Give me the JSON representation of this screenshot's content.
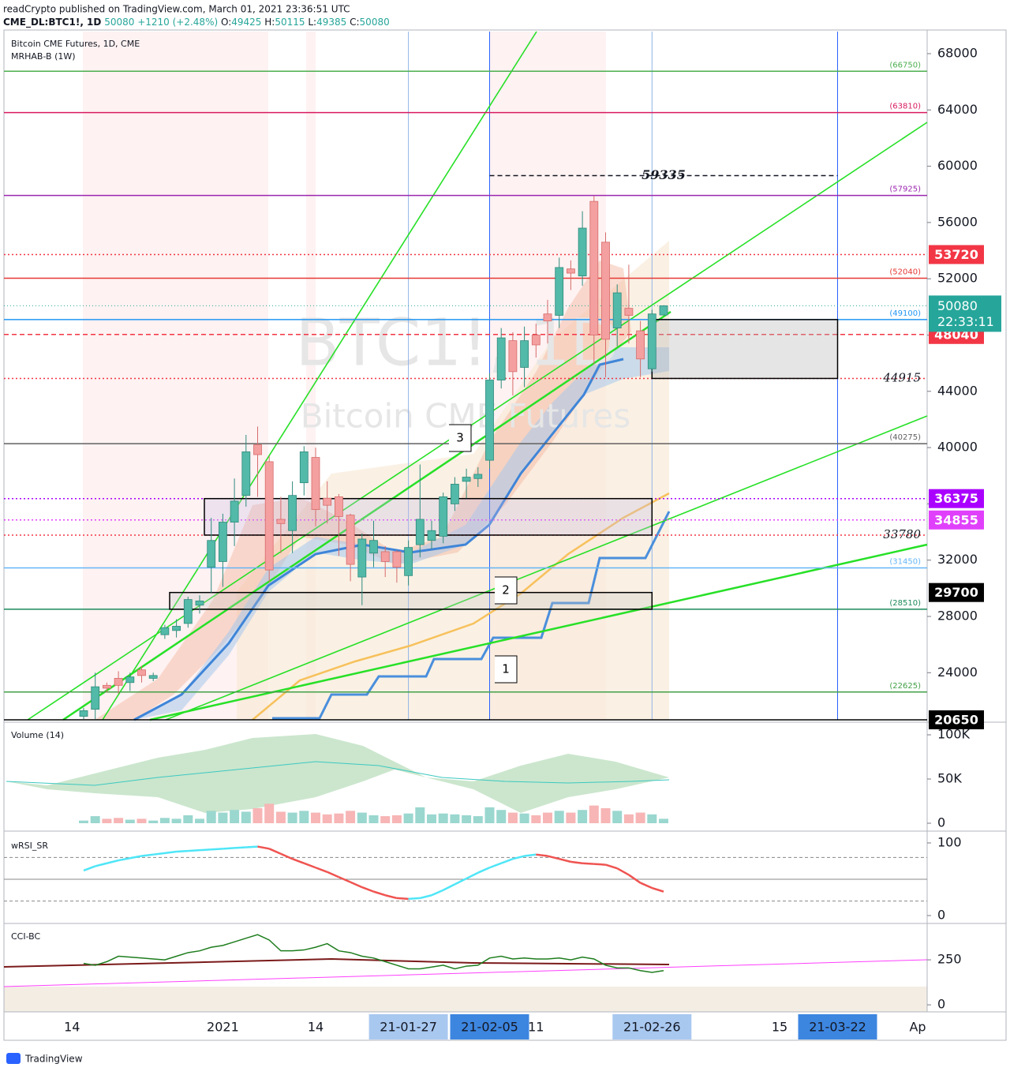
{
  "header": {
    "published": "readCrypto published on TradingView.com, March 01, 2021 23:36:51 UTC",
    "symbol": "CME_DL:BTC1!, 1D",
    "change": "+1210 (+2.48%)",
    "o_label": "O:",
    "h_label": "H:",
    "l_label": "L:",
    "c_label": "C:"
  },
  "footer": {
    "brand": "TradingView"
  },
  "chart_data": [
    {
      "type": "candlestick",
      "title": "Bitcoin CME Futures, 1D, CME",
      "subtitle": "MRHAB-B (1W)",
      "watermark": [
        "BTC1!, 1D",
        "Bitcoin CME Futures"
      ],
      "countdown": "22:33:11",
      "annotations": [
        "3",
        "2",
        "1"
      ],
      "up_color": "#53b9a8",
      "down_color": "#f4a0a0",
      "x": [
        "2020-12-15",
        "2020-12-16",
        "2020-12-17",
        "2020-12-18",
        "2020-12-21",
        "2020-12-22",
        "2020-12-23",
        "2020-12-24",
        "2020-12-28",
        "2020-12-29",
        "2020-12-30",
        "2020-12-31",
        "2021-01-04",
        "2021-01-05",
        "2021-01-06",
        "2021-01-07",
        "2021-01-08",
        "2021-01-11",
        "2021-01-12",
        "2021-01-13",
        "2021-01-14",
        "2021-01-15",
        "2021-01-19",
        "2021-01-20",
        "2021-01-21",
        "2021-01-22",
        "2021-01-25",
        "2021-01-26",
        "2021-01-27",
        "2021-01-28",
        "2021-01-29",
        "2021-02-01",
        "2021-02-02",
        "2021-02-03",
        "2021-02-04",
        "2021-02-05",
        "2021-02-08",
        "2021-02-09",
        "2021-02-10",
        "2021-02-11",
        "2021-02-12",
        "2021-02-16",
        "2021-02-17",
        "2021-02-18",
        "2021-02-19",
        "2021-02-22",
        "2021-02-23",
        "2021-02-24",
        "2021-02-25",
        "2021-02-26",
        "2021-03-01"
      ],
      "open": [
        20900,
        21400,
        23100,
        23600,
        23300,
        24200,
        23600,
        26700,
        27000,
        27500,
        28800,
        31500,
        31900,
        34700,
        36600,
        40200,
        39000,
        34900,
        34100,
        37500,
        39300,
        36400,
        36500,
        35200,
        30800,
        32500,
        32600,
        32600,
        30900,
        33100,
        33400,
        33700,
        36000,
        37600,
        37800,
        39100,
        44800,
        47600,
        45700,
        48000,
        49500,
        49400,
        52700,
        52200,
        57500,
        54600,
        48500,
        49900,
        48300,
        45600,
        49425
      ],
      "high": [
        21500,
        24000,
        23300,
        24100,
        24000,
        24500,
        24000,
        27400,
        27800,
        29400,
        29500,
        35000,
        35300,
        37800,
        40900,
        41500,
        39400,
        36500,
        37600,
        40100,
        40000,
        37600,
        36700,
        35300,
        33900,
        34800,
        33000,
        32700,
        33400,
        38800,
        34800,
        36800,
        37900,
        38500,
        38600,
        45300,
        48500,
        48200,
        48600,
        48800,
        50500,
        53500,
        53300,
        56800,
        57900,
        55300,
        51600,
        53000,
        49000,
        49800,
        50115
      ],
      "low": [
        20700,
        20700,
        22600,
        22500,
        22700,
        23300,
        23400,
        26400,
        26500,
        27200,
        28200,
        29700,
        30100,
        33000,
        35800,
        36500,
        30400,
        32500,
        32500,
        36600,
        34400,
        34600,
        32300,
        30500,
        28800,
        31500,
        30800,
        30400,
        30200,
        32200,
        32800,
        33200,
        35500,
        36400,
        37200,
        38500,
        44200,
        43700,
        44300,
        46400,
        47400,
        48500,
        51200,
        51500,
        45900,
        45000,
        47200,
        47400,
        45000,
        45400,
        49385
      ],
      "close": [
        21300,
        23000,
        22900,
        23100,
        23700,
        23800,
        23800,
        27200,
        27300,
        29200,
        29100,
        33400,
        34700,
        36200,
        39700,
        39500,
        31300,
        34600,
        36600,
        39700,
        35600,
        35900,
        35100,
        31700,
        33500,
        33400,
        31900,
        31500,
        32900,
        34900,
        34100,
        36500,
        37400,
        37900,
        38100,
        44800,
        47800,
        45400,
        47600,
        47300,
        49000,
        52800,
        52400,
        55600,
        48000,
        47700,
        51000,
        49400,
        46300,
        49500,
        50080
      ],
      "ylim": [
        20650,
        69570
      ],
      "yticks": [
        24000,
        28000,
        32000,
        36000,
        40000,
        44000,
        48000,
        52000,
        56000,
        60000,
        64000,
        68000
      ],
      "xticks": [
        {
          "value": "2020-12-14",
          "label": "14"
        },
        {
          "value": "2021-01-04",
          "label": "2021"
        },
        {
          "value": "2021-01-14",
          "label": "14"
        },
        {
          "value": "2021-01-27",
          "label": "21-01-27"
        },
        {
          "value": "2021-02-05",
          "label": "21-02-05"
        },
        {
          "value": "2021-02-11",
          "label": "11"
        },
        {
          "value": "2021-02-26",
          "label": "21-02-26"
        },
        {
          "value": "2021-03-15",
          "label": "15"
        },
        {
          "value": "2021-03-22",
          "label": "21-03-22"
        },
        {
          "value": "2021-04-01",
          "label": "Ap"
        }
      ],
      "levels": [
        {
          "value": 66750,
          "label": "(66750)",
          "color": "#4caf50",
          "style": "solid",
          "label_style": "paren"
        },
        {
          "value": 63810,
          "label": "(63810)",
          "color": "#d81b60",
          "style": "solid",
          "label_style": "paren"
        },
        {
          "value": 59335,
          "color": "#131722",
          "style": "dashed",
          "label_style": "italic-center"
        },
        {
          "value": 57925,
          "label": "(57925)",
          "color": "#9c27b0",
          "style": "solid",
          "label_style": "paren"
        },
        {
          "value": 53720,
          "color": "#f23645",
          "style": "dotted",
          "label_style": "box"
        },
        {
          "value": 52040,
          "label": "(52040)",
          "color": "#e53935",
          "style": "solid",
          "label_style": "paren"
        },
        {
          "value": 49100,
          "label": "(49100)",
          "color": "#2196f3",
          "style": "solid",
          "label_style": "paren"
        },
        {
          "value": 48040,
          "color": "#f23645",
          "style": "dashed",
          "label_style": "box"
        },
        {
          "value": 44915,
          "color": "#f23645",
          "style": "dotted",
          "label_style": "italic"
        },
        {
          "value": 40275,
          "label": "(40275)",
          "color": "#616161",
          "style": "solid",
          "label_style": "paren"
        },
        {
          "value": 36375,
          "color": "#aa00ff",
          "style": "dotted",
          "label_style": "box"
        },
        {
          "value": 34855,
          "color": "#e040fb",
          "style": "dotted",
          "label_style": "box"
        },
        {
          "value": 33780,
          "color": "#f23645",
          "style": "dotted",
          "label_style": "italic"
        },
        {
          "value": 31450,
          "label": "(31450)",
          "color": "#64b5f6",
          "style": "solid",
          "label_style": "paren"
        },
        {
          "value": 29700,
          "color": "#000000",
          "style": "none",
          "label_style": "box"
        },
        {
          "value": 28510,
          "label": "(28510)",
          "color": "#1b8a5a",
          "style": "solid",
          "label_style": "paren"
        },
        {
          "value": 22625,
          "label": "(22625)",
          "color": "#43a047",
          "style": "solid",
          "label_style": "paren"
        },
        {
          "value": 20650,
          "color": "#000000",
          "style": "solid",
          "label_style": "box"
        }
      ]
    },
    {
      "type": "bar",
      "title": "Volume (14)",
      "values": [
        3000,
        8000,
        5000,
        6000,
        4000,
        5000,
        3000,
        6000,
        5000,
        9000,
        5000,
        14000,
        12000,
        15000,
        13000,
        17000,
        22000,
        13000,
        12000,
        14000,
        12000,
        10000,
        11000,
        14000,
        12000,
        9000,
        8000,
        9000,
        11000,
        18000,
        10000,
        11000,
        10000,
        9000,
        8000,
        18000,
        15000,
        12000,
        11000,
        9000,
        12000,
        14000,
        12000,
        15000,
        20000,
        17000,
        14000,
        10000,
        12000,
        10000,
        5000
      ],
      "ylim": [
        -6250,
        111600
      ],
      "yticks": [
        0,
        {
          "value": 50000,
          "label": "50K"
        },
        {
          "value": 100000,
          "label": "100K"
        }
      ]
    },
    {
      "type": "line",
      "title": "wRSI_SR",
      "values": [
        62,
        68,
        72,
        76,
        79,
        82,
        84,
        86,
        88,
        89,
        90,
        91,
        92,
        93,
        94,
        95,
        92,
        85,
        78,
        72,
        66,
        60,
        53,
        46,
        39,
        33,
        28,
        24,
        23,
        24,
        28,
        35,
        43,
        51,
        59,
        66,
        72,
        78,
        82,
        84,
        82,
        78,
        74,
        72,
        71,
        70,
        65,
        56,
        45,
        38,
        33
      ],
      "up_color": "#4ee6f7",
      "down_color": "#ef5350",
      "levels": [
        80,
        50,
        20
      ],
      "ylim": [
        -8.7,
        113
      ],
      "yticks": [
        0,
        100
      ]
    },
    {
      "type": "line",
      "title": "CCI-BC",
      "color": "#1e7d1e",
      "values": [
        230,
        220,
        240,
        270,
        265,
        260,
        255,
        250,
        270,
        290,
        300,
        320,
        330,
        350,
        370,
        390,
        360,
        300,
        300,
        305,
        320,
        340,
        300,
        290,
        270,
        260,
        240,
        220,
        200,
        200,
        210,
        220,
        200,
        215,
        220,
        260,
        270,
        255,
        260,
        255,
        255,
        260,
        250,
        265,
        255,
        220,
        205,
        205,
        190,
        180,
        190
      ],
      "ylim": [
        -39,
        417
      ],
      "yticks": [
        0,
        250
      ]
    }
  ]
}
